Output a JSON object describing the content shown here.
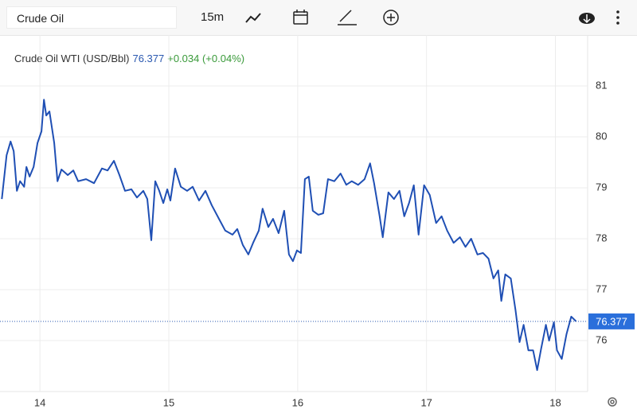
{
  "toolbar": {
    "search": "Crude Oil",
    "interval": "15m"
  },
  "chart_data": {
    "type": "line",
    "title": "Crude Oil WTI (USD/Bbl)",
    "last_value": 76.377,
    "change_label": "+0.034 (+0.04%)",
    "xlim": [
      13.69,
      18.25
    ],
    "xticks": [
      14,
      15,
      16,
      17,
      18
    ],
    "ylim": [
      75,
      82
    ],
    "yticks": [
      76,
      77,
      78,
      79,
      80,
      81
    ],
    "grid": true,
    "series": [
      {
        "name": "Crude Oil WTI",
        "color": "#1f4fb4",
        "x": [
          13.704,
          13.741,
          13.772,
          13.796,
          13.821,
          13.846,
          13.877,
          13.895,
          13.92,
          13.951,
          13.981,
          14.012,
          14.031,
          14.049,
          14.074,
          14.111,
          14.136,
          14.167,
          14.216,
          14.259,
          14.296,
          14.358,
          14.42,
          14.481,
          14.525,
          14.574,
          14.617,
          14.66,
          14.71,
          14.753,
          14.802,
          14.833,
          14.864,
          14.895,
          14.926,
          14.957,
          14.988,
          15.012,
          15.049,
          15.093,
          15.142,
          15.185,
          15.235,
          15.284,
          15.333,
          15.389,
          15.438,
          15.494,
          15.531,
          15.574,
          15.617,
          15.654,
          15.698,
          15.728,
          15.772,
          15.809,
          15.852,
          15.895,
          15.932,
          15.963,
          15.994,
          16.025,
          16.056,
          16.086,
          16.117,
          16.16,
          16.198,
          16.235,
          16.284,
          16.333,
          16.377,
          16.42,
          16.469,
          16.519,
          16.562,
          16.593,
          16.636,
          16.66,
          16.704,
          16.747,
          16.79,
          16.827,
          16.864,
          16.901,
          16.938,
          16.981,
          17.025,
          17.074,
          17.117,
          17.16,
          17.21,
          17.259,
          17.302,
          17.346,
          17.395,
          17.438,
          17.481,
          17.519,
          17.556,
          17.58,
          17.611,
          17.654,
          17.691,
          17.722,
          17.753,
          17.79,
          17.827,
          17.858,
          17.889,
          17.926,
          17.951,
          17.988,
          18.012,
          18.049,
          18.086,
          18.123,
          18.16
        ],
        "values": [
          78.78,
          79.64,
          79.91,
          79.72,
          78.94,
          79.13,
          79.02,
          79.41,
          79.22,
          79.41,
          79.88,
          80.11,
          80.73,
          80.42,
          80.5,
          79.88,
          79.13,
          79.36,
          79.25,
          79.34,
          79.13,
          79.17,
          79.09,
          79.38,
          79.34,
          79.53,
          79.25,
          78.94,
          78.97,
          78.81,
          78.94,
          78.78,
          77.97,
          79.13,
          78.94,
          78.7,
          78.97,
          78.75,
          79.38,
          79.02,
          78.94,
          79.02,
          78.75,
          78.94,
          78.66,
          78.39,
          78.16,
          78.08,
          78.19,
          77.88,
          77.69,
          77.92,
          78.16,
          78.59,
          78.23,
          78.39,
          78.11,
          78.55,
          77.69,
          77.56,
          77.77,
          77.72,
          79.17,
          79.22,
          78.55,
          78.47,
          78.5,
          79.17,
          79.13,
          79.28,
          79.06,
          79.13,
          79.06,
          79.17,
          79.48,
          79.09,
          78.44,
          78.03,
          78.91,
          78.78,
          78.94,
          78.44,
          78.7,
          79.05,
          78.08,
          79.05,
          78.86,
          78.31,
          78.44,
          78.16,
          77.92,
          78.03,
          77.84,
          78.0,
          77.69,
          77.72,
          77.61,
          77.22,
          77.38,
          76.78,
          77.3,
          77.22,
          76.59,
          75.97,
          76.31,
          75.81,
          75.81,
          75.42,
          75.84,
          76.31,
          76.0,
          76.36,
          75.81,
          75.64,
          76.13,
          76.47,
          76.38
        ]
      }
    ]
  }
}
